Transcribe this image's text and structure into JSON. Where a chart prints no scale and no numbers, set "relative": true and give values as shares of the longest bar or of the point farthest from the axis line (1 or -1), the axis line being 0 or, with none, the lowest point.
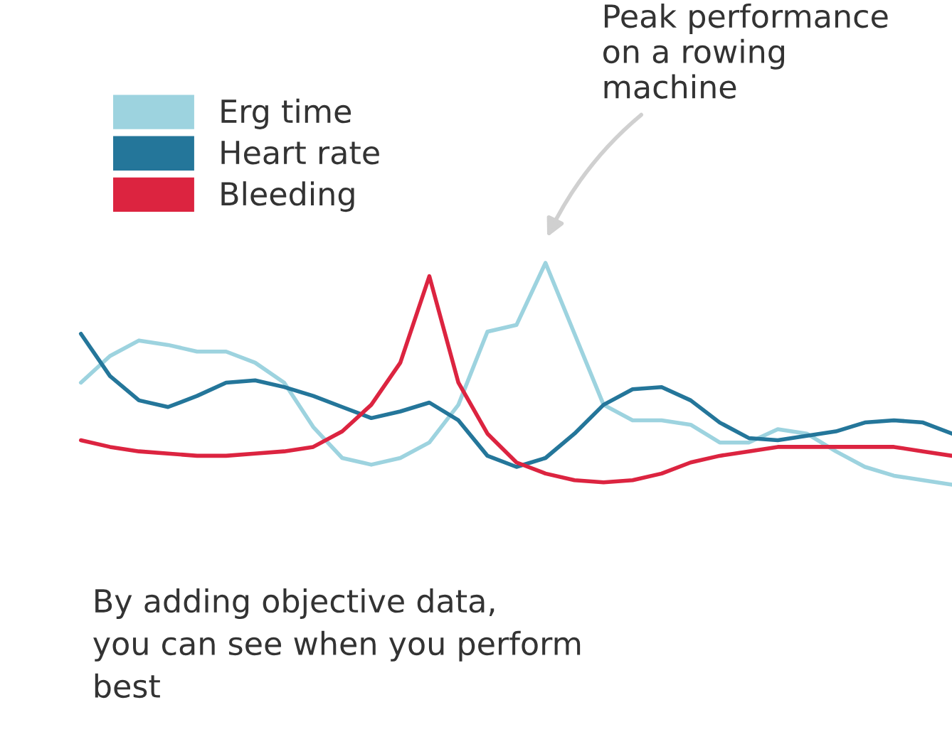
{
  "chart_data": {
    "type": "line",
    "relative": true,
    "legend": "top left",
    "marker": "none",
    "line_style": "solid",
    "categories": [
      null,
      null,
      null,
      null,
      null,
      null,
      null,
      null,
      null,
      null,
      null,
      null,
      null,
      null,
      null,
      null,
      null,
      null,
      null,
      null,
      null,
      null,
      null,
      null,
      null,
      null,
      null,
      null,
      null,
      null,
      null
    ],
    "series": [
      {
        "name": "Erg time",
        "color": "#9dd3df",
        "values": [
          0.46,
          0.58,
          0.65,
          0.63,
          0.6,
          0.6,
          0.55,
          0.46,
          0.26,
          0.12,
          0.09,
          0.12,
          0.19,
          0.36,
          0.69,
          0.72,
          1.0,
          0.68,
          0.36,
          0.29,
          0.29,
          0.27,
          0.19,
          0.19,
          0.25,
          0.23,
          0.15,
          0.08,
          0.04,
          0.02,
          0.0
        ]
      },
      {
        "name": "Heart rate",
        "color": "#24769a",
        "values": [
          0.68,
          0.49,
          0.38,
          0.35,
          0.4,
          0.46,
          0.47,
          0.44,
          0.4,
          0.35,
          0.3,
          0.33,
          0.37,
          0.29,
          0.13,
          0.08,
          0.12,
          0.23,
          0.36,
          0.43,
          0.44,
          0.38,
          0.28,
          0.21,
          0.2,
          0.22,
          0.24,
          0.28,
          0.29,
          0.28,
          0.23
        ]
      },
      {
        "name": "Bleeding",
        "color": "#dc2440",
        "values": [
          0.2,
          0.17,
          0.15,
          0.14,
          0.13,
          0.13,
          0.14,
          0.15,
          0.17,
          0.24,
          0.36,
          0.55,
          0.94,
          0.46,
          0.23,
          0.1,
          0.05,
          0.02,
          0.01,
          0.02,
          0.05,
          0.1,
          0.13,
          0.15,
          0.17,
          0.17,
          0.17,
          0.17,
          0.17,
          0.15,
          0.13
        ]
      }
    ],
    "annotations": [
      "Peak performance\non a rowing\nmachine",
      "By adding objective data,\nyou can see when you perform\nbest"
    ]
  }
}
